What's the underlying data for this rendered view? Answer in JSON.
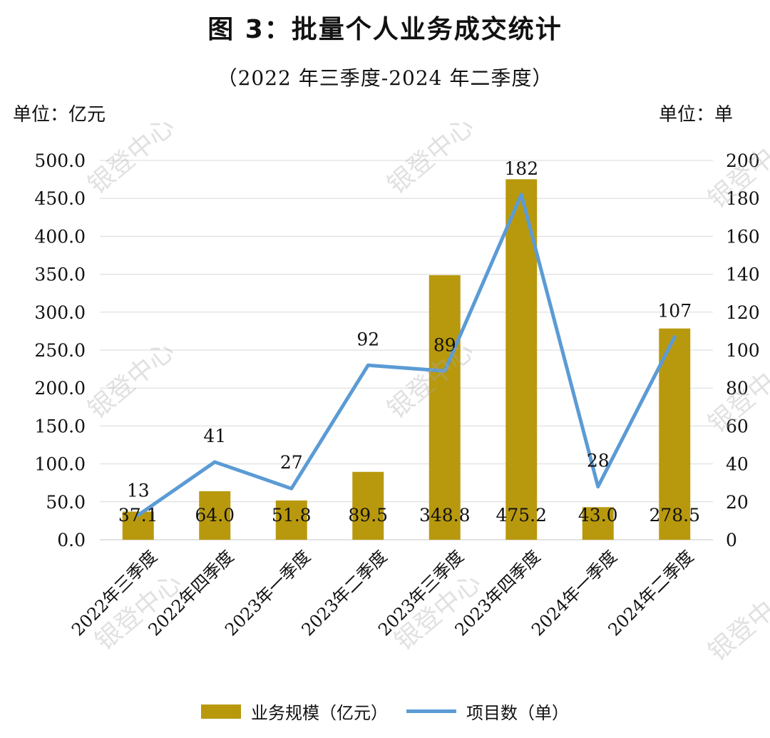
{
  "title": "图 3：批量个人业务成交统计",
  "subtitle": "（2022 年三季度-2024 年二季度）",
  "unit_left": "单位：亿元",
  "unit_right": "单位：单",
  "watermark": "银登中心",
  "colors": {
    "bar": "#B8990E",
    "line": "#5B9BD5",
    "grid": "#D9D9D9"
  },
  "chart_data": {
    "type": "bar",
    "categories": [
      "2022年三季度",
      "2022年四季度",
      "2023年一季度",
      "2023年二季度",
      "2023年三季度",
      "2023年四季度",
      "2024年一季度",
      "2024年二季度"
    ],
    "series": [
      {
        "name": "业务规模（亿元）",
        "type": "bar",
        "axis": "left",
        "values": [
          37.1,
          64.0,
          51.8,
          89.5,
          348.8,
          475.2,
          43.0,
          278.5
        ],
        "labels": [
          "37.1",
          "64.0",
          "51.8",
          "89.5",
          "348.8",
          "475.2",
          "43.0",
          "278.5"
        ]
      },
      {
        "name": "项目数（单）",
        "type": "line",
        "axis": "right",
        "values": [
          13,
          41,
          27,
          92,
          89,
          182,
          28,
          107
        ],
        "labels": [
          "13",
          "41",
          "27",
          "92",
          "89",
          "182",
          "28",
          "107"
        ]
      }
    ],
    "y_left": {
      "min": 0,
      "max": 500,
      "ticks": [
        "0.0",
        "50.0",
        "100.0",
        "150.0",
        "200.0",
        "250.0",
        "300.0",
        "350.0",
        "400.0",
        "450.0",
        "500.0"
      ]
    },
    "y_right": {
      "min": 0,
      "max": 200,
      "ticks": [
        "0",
        "20",
        "40",
        "60",
        "80",
        "100",
        "120",
        "140",
        "160",
        "180",
        "200"
      ]
    },
    "grid": true,
    "legend_position": "bottom"
  }
}
